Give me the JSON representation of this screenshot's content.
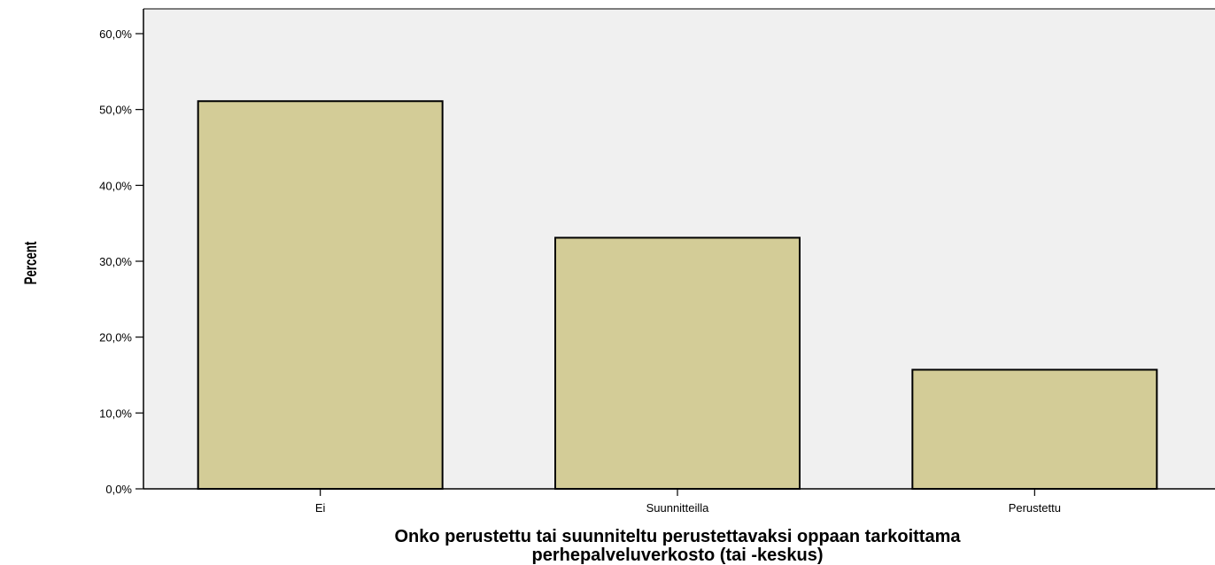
{
  "chart_data": {
    "type": "bar",
    "title": "",
    "categories": [
      "Ei",
      "Suunnitteilla",
      "Perustettu"
    ],
    "values": [
      51.1,
      33.1,
      15.7
    ],
    "xlabel_lines": [
      "Onko perustettu tai suunniteltu perustettavaksi oppaan tarkoittama",
      "perhepalveluverkosto (tai -keskus)"
    ],
    "ylabel": "Percent",
    "ylim": [
      0,
      60
    ],
    "yticks": [
      0,
      10,
      20,
      30,
      40,
      50,
      60
    ],
    "ytick_labels": [
      "0,0%",
      "10,0%",
      "20,0%",
      "30,0%",
      "40,0%",
      "50,0%",
      "60,0%"
    ],
    "grid": false,
    "colors": {
      "bar_fill": "#d3cc97",
      "bar_stroke": "#000000",
      "plot_background": "#f0f0f0",
      "axis": "#000000"
    }
  }
}
